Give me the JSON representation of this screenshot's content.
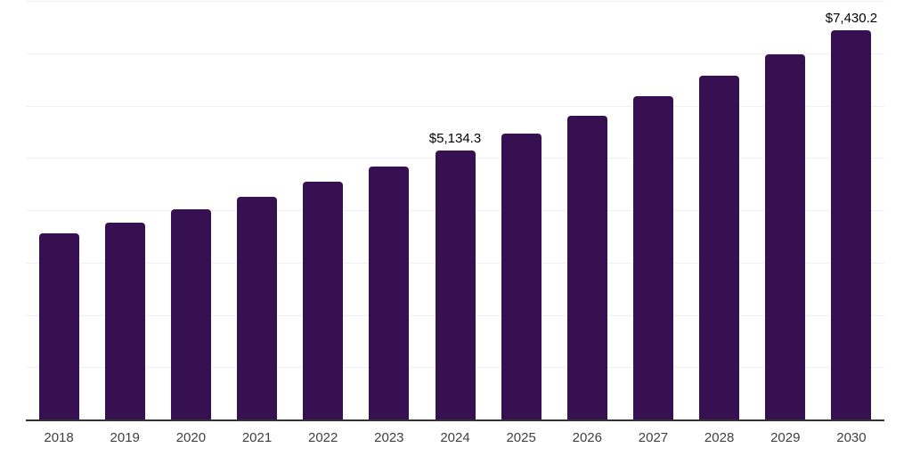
{
  "chart_data": {
    "type": "bar",
    "title": "",
    "xlabel": "",
    "ylabel": "",
    "categories": [
      "2018",
      "2019",
      "2020",
      "2021",
      "2022",
      "2023",
      "2024",
      "2025",
      "2026",
      "2027",
      "2028",
      "2029",
      "2030"
    ],
    "values": [
      3550,
      3770,
      4025,
      4255,
      4550,
      4840,
      5134.3,
      5460,
      5810,
      6175,
      6570,
      6985,
      7430.2
    ],
    "value_labels": [
      {
        "category": "2024",
        "text": "$5,134.3"
      },
      {
        "category": "2030",
        "text": "$7,430.2"
      }
    ],
    "ylim": [
      0,
      8000
    ],
    "grid_step": 1000,
    "grid": true,
    "legend": false,
    "y_axis_tick_labels_visible": false,
    "colors": {
      "bar": "#361050",
      "gridline": "#f0f0f0",
      "axis_line": "#333333",
      "tick_label": "#404040",
      "value_label": "#000000",
      "background": "#ffffff"
    }
  }
}
